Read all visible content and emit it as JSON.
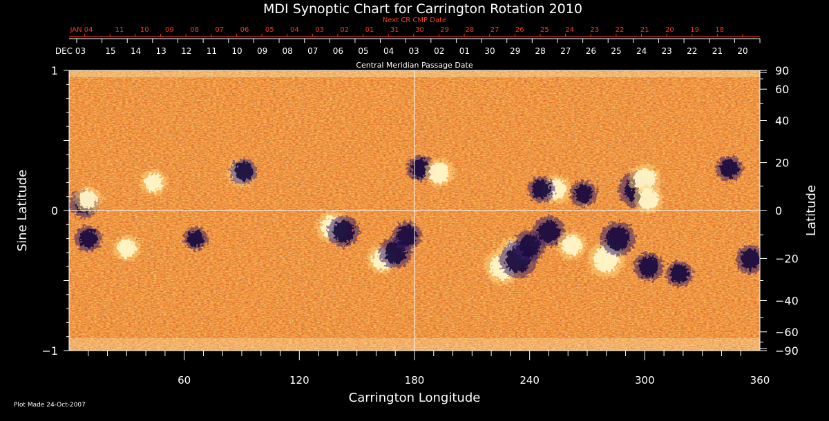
{
  "chart_data": {
    "type": "heatmap",
    "title": "MDI Synoptic Chart for Carrington Rotation 2010",
    "xlabel": "Carrington Longitude",
    "ylabel_left": "Sine Latitude",
    "ylabel_right": "Latitude",
    "top_axis_label": "Central Meridian Passage Date",
    "next_axis_label": "Next CR CMP Date",
    "footer": "Plot Made 24-Oct-2007",
    "xlim": [
      0,
      360
    ],
    "ylim_sine": [
      -1,
      1
    ],
    "x_ticks": [
      60,
      120,
      180,
      240,
      300,
      360
    ],
    "left_ticks": [
      {
        "value": 1,
        "label": "1"
      },
      {
        "value": 0,
        "label": "0"
      },
      {
        "value": -1,
        "label": "−1"
      }
    ],
    "right_ticks": [
      {
        "deg": 90,
        "label": "90"
      },
      {
        "deg": 60,
        "label": "60"
      },
      {
        "deg": 40,
        "label": "40"
      },
      {
        "deg": 20,
        "label": "20"
      },
      {
        "deg": 0,
        "label": "0"
      },
      {
        "deg": -20,
        "label": "−20"
      },
      {
        "deg": -40,
        "label": "−40"
      },
      {
        "deg": -60,
        "label": "−60"
      },
      {
        "deg": -90,
        "label": "−90"
      }
    ],
    "cmp_dates": [
      "DEC 03",
      "15",
      "14",
      "13",
      "12",
      "11",
      "10",
      "09",
      "08",
      "07",
      "06",
      "05",
      "04",
      "03",
      "02",
      "01",
      "30",
      "29",
      "28",
      "27",
      "26",
      "25",
      "24",
      "23",
      "22",
      "21",
      "20"
    ],
    "next_cmp_dates": [
      "JAN 04",
      "11",
      "10",
      "09",
      "08",
      "07",
      "06",
      "05",
      "04",
      "03",
      "02",
      "01",
      "31",
      "30",
      "29",
      "28",
      "27",
      "26",
      "25",
      "24",
      "23",
      "22",
      "21",
      "20",
      "19",
      "18"
    ],
    "colors": {
      "background": "#000000",
      "map_base": "#e0561a",
      "positive_flux": "#fff6c8",
      "negative_flux": "#1a1040",
      "next_axis": "#ff3b1f",
      "axis": "#ffffff"
    },
    "active_regions": [
      {
        "lon": 8,
        "sinlat": 0.05,
        "polarity": "negative",
        "strength": 0.7
      },
      {
        "lon": 10,
        "sinlat": 0.08,
        "polarity": "positive",
        "strength": 0.6
      },
      {
        "lon": 10,
        "sinlat": -0.2,
        "polarity": "negative",
        "strength": 0.6
      },
      {
        "lon": 30,
        "sinlat": -0.27,
        "polarity": "positive",
        "strength": 0.6
      },
      {
        "lon": 44,
        "sinlat": 0.2,
        "polarity": "positive",
        "strength": 0.6
      },
      {
        "lon": 66,
        "sinlat": -0.2,
        "polarity": "negative",
        "strength": 0.5
      },
      {
        "lon": 90,
        "sinlat": 0.27,
        "polarity": "positive",
        "strength": 0.7
      },
      {
        "lon": 91,
        "sinlat": 0.28,
        "polarity": "negative",
        "strength": 0.6
      },
      {
        "lon": 137,
        "sinlat": -0.12,
        "polarity": "positive",
        "strength": 0.8
      },
      {
        "lon": 143,
        "sinlat": -0.15,
        "polarity": "negative",
        "strength": 0.8
      },
      {
        "lon": 163,
        "sinlat": -0.35,
        "polarity": "positive",
        "strength": 0.7
      },
      {
        "lon": 170,
        "sinlat": -0.3,
        "polarity": "negative",
        "strength": 0.8
      },
      {
        "lon": 176,
        "sinlat": -0.18,
        "polarity": "negative",
        "strength": 0.7
      },
      {
        "lon": 183,
        "sinlat": 0.3,
        "polarity": "negative",
        "strength": 0.6
      },
      {
        "lon": 193,
        "sinlat": 0.27,
        "polarity": "positive",
        "strength": 0.7
      },
      {
        "lon": 226,
        "sinlat": -0.4,
        "polarity": "positive",
        "strength": 1.0
      },
      {
        "lon": 232,
        "sinlat": -0.3,
        "polarity": "positive",
        "strength": 0.8
      },
      {
        "lon": 234,
        "sinlat": -0.35,
        "polarity": "negative",
        "strength": 1.0
      },
      {
        "lon": 240,
        "sinlat": -0.25,
        "polarity": "negative",
        "strength": 0.8
      },
      {
        "lon": 250,
        "sinlat": -0.15,
        "polarity": "negative",
        "strength": 0.8
      },
      {
        "lon": 254,
        "sinlat": 0.15,
        "polarity": "positive",
        "strength": 0.7
      },
      {
        "lon": 246,
        "sinlat": 0.15,
        "polarity": "negative",
        "strength": 0.6
      },
      {
        "lon": 262,
        "sinlat": -0.25,
        "polarity": "positive",
        "strength": 0.7
      },
      {
        "lon": 268,
        "sinlat": 0.12,
        "polarity": "negative",
        "strength": 0.6
      },
      {
        "lon": 280,
        "sinlat": -0.35,
        "polarity": "positive",
        "strength": 1.0
      },
      {
        "lon": 286,
        "sinlat": -0.2,
        "polarity": "negative",
        "strength": 0.9
      },
      {
        "lon": 296,
        "sinlat": 0.15,
        "polarity": "negative",
        "strength": 1.0
      },
      {
        "lon": 300,
        "sinlat": 0.22,
        "polarity": "positive",
        "strength": 0.8
      },
      {
        "lon": 302,
        "sinlat": 0.08,
        "polarity": "positive",
        "strength": 0.7
      },
      {
        "lon": 302,
        "sinlat": -0.4,
        "polarity": "negative",
        "strength": 0.7
      },
      {
        "lon": 318,
        "sinlat": -0.45,
        "polarity": "negative",
        "strength": 0.6
      },
      {
        "lon": 344,
        "sinlat": 0.3,
        "polarity": "negative",
        "strength": 0.6
      },
      {
        "lon": 355,
        "sinlat": -0.35,
        "polarity": "negative",
        "strength": 0.7
      }
    ]
  }
}
